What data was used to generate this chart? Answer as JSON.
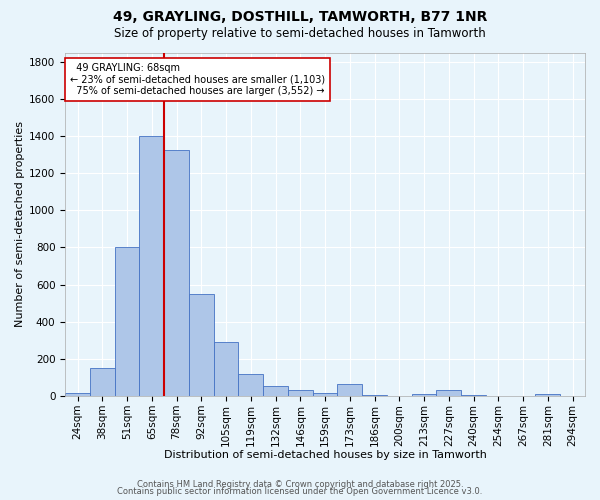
{
  "title": "49, GRAYLING, DOSTHILL, TAMWORTH, B77 1NR",
  "subtitle": "Size of property relative to semi-detached houses in Tamworth",
  "xlabel": "Distribution of semi-detached houses by size in Tamworth",
  "ylabel": "Number of semi-detached properties",
  "categories": [
    "24sqm",
    "38sqm",
    "51sqm",
    "65sqm",
    "78sqm",
    "92sqm",
    "105sqm",
    "119sqm",
    "132sqm",
    "146sqm",
    "159sqm",
    "173sqm",
    "186sqm",
    "200sqm",
    "213sqm",
    "227sqm",
    "240sqm",
    "254sqm",
    "267sqm",
    "281sqm",
    "294sqm"
  ],
  "values": [
    15,
    150,
    805,
    1400,
    1325,
    550,
    290,
    120,
    55,
    30,
    15,
    65,
    5,
    0,
    10,
    30,
    5,
    0,
    0,
    10,
    0
  ],
  "bar_color": "#aec6e8",
  "bar_edge_color": "#4472c4",
  "red_line_color": "#cc0000",
  "property_label": "49 GRAYLING: 68sqm",
  "pct_smaller": "23% of semi-detached houses are smaller (1,103)",
  "pct_larger": "75% of semi-detached houses are larger (3,552)",
  "annotation_box_facecolor": "#ffffff",
  "annotation_box_edgecolor": "#cc0000",
  "ylim": [
    0,
    1850
  ],
  "yticks": [
    0,
    200,
    400,
    600,
    800,
    1000,
    1200,
    1400,
    1600,
    1800
  ],
  "footer1": "Contains HM Land Registry data © Crown copyright and database right 2025.",
  "footer2": "Contains public sector information licensed under the Open Government Licence v3.0.",
  "background_color": "#e8f4fb",
  "grid_color": "#ffffff",
  "title_fontsize": 10,
  "subtitle_fontsize": 8.5,
  "axis_label_fontsize": 8,
  "tick_fontsize": 7.5,
  "annot_fontsize": 7,
  "footer_fontsize": 6
}
